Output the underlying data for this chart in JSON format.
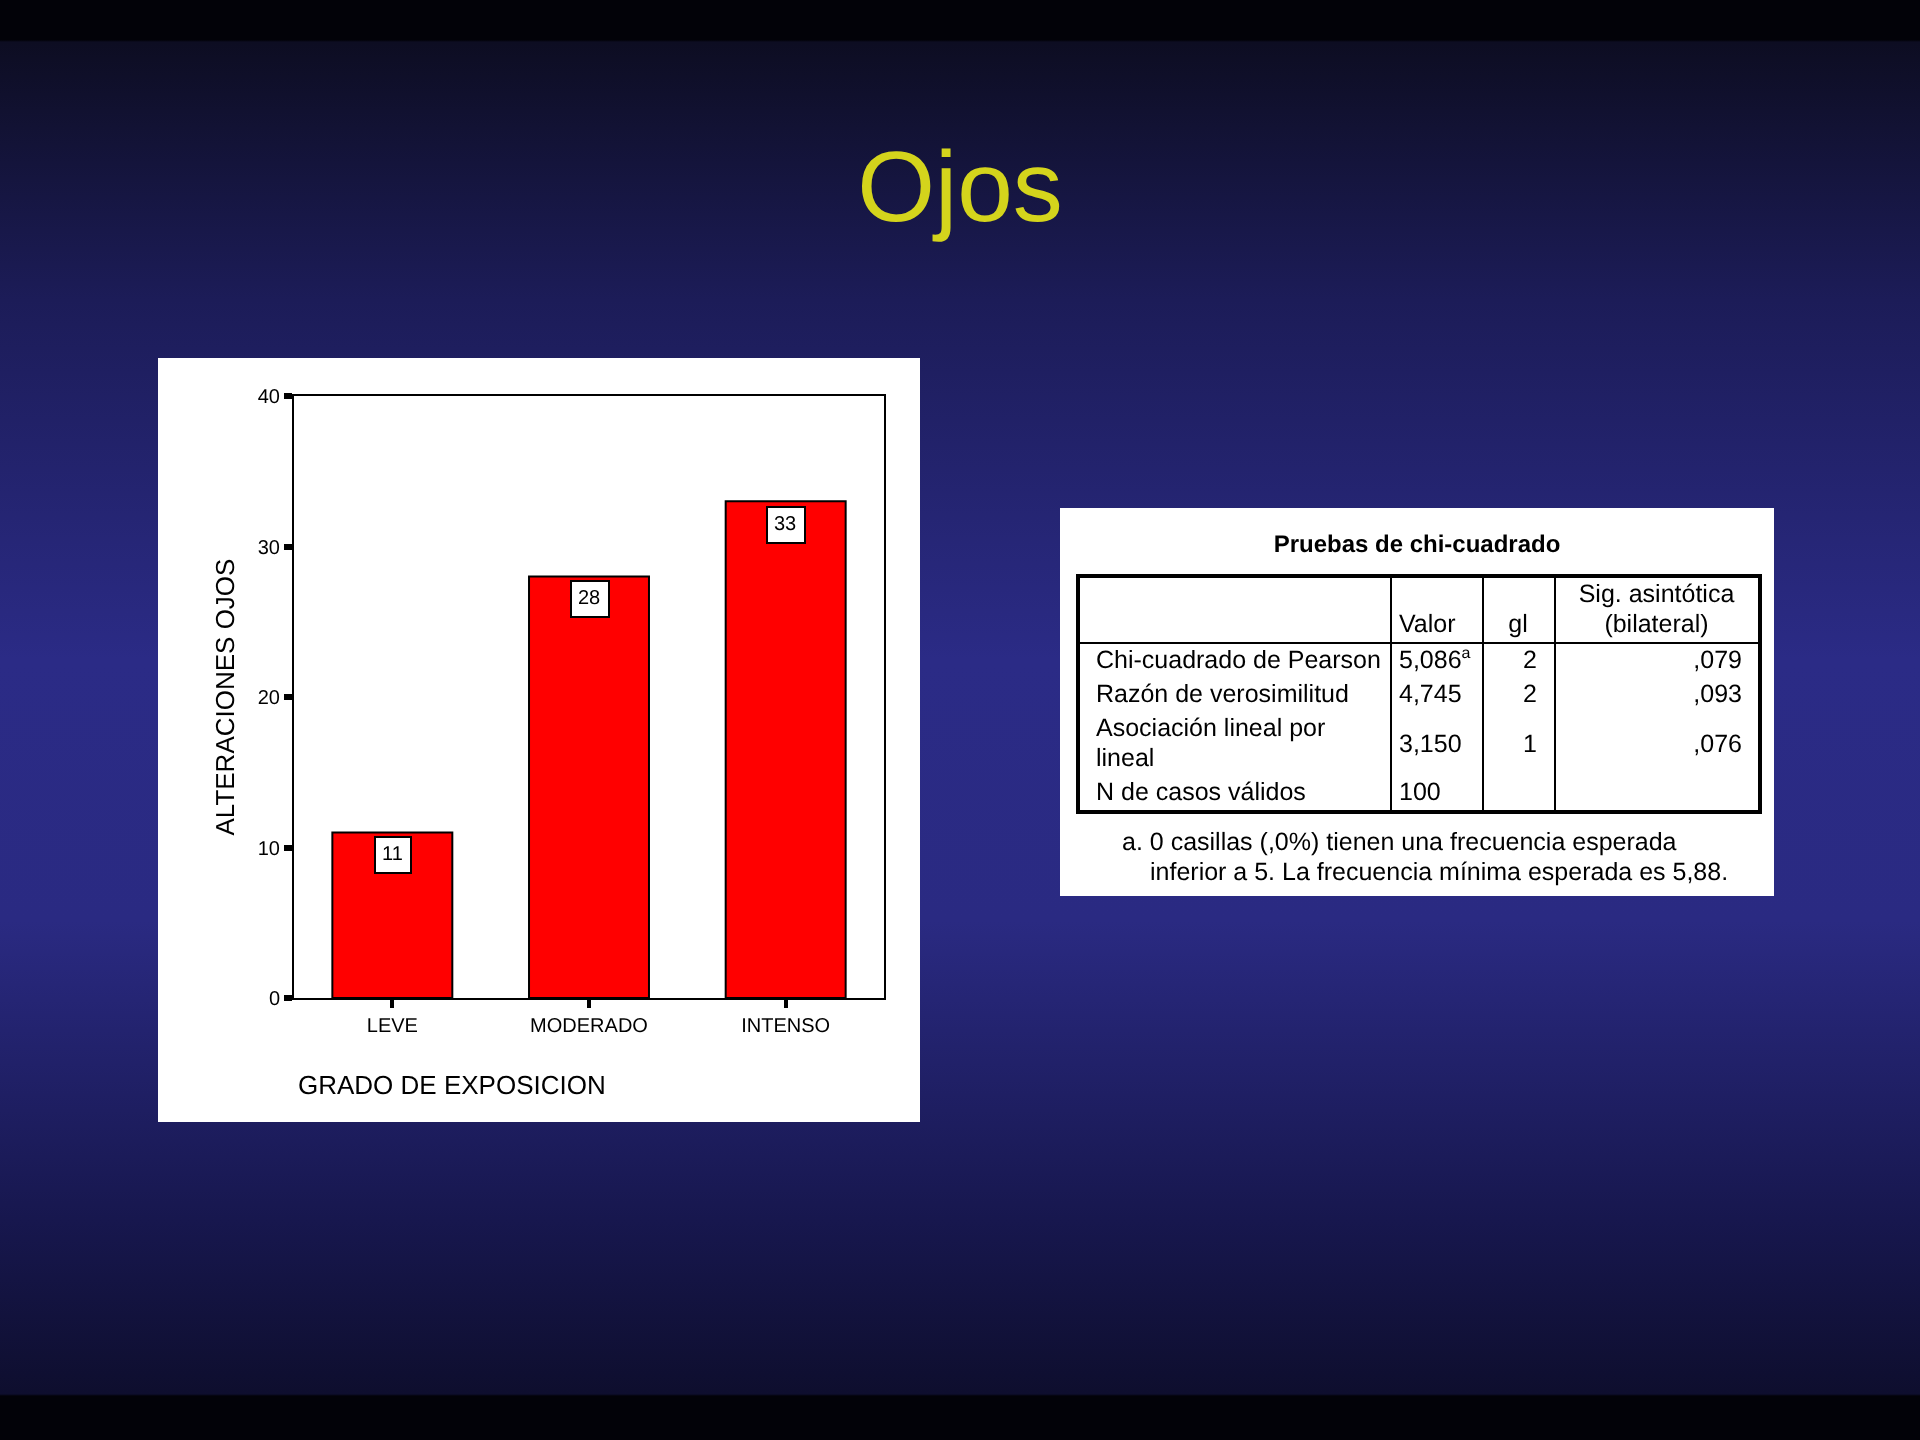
{
  "chart_data": [
    {
      "type": "bar",
      "title": "Ojos",
      "xlabel": "GRADO DE EXPOSICION",
      "ylabel": "ALTERACIONES OJOS",
      "categories": [
        "LEVE",
        "MODERADO",
        "INTENSO"
      ],
      "values": [
        11,
        28,
        33
      ],
      "color": "#ff0000",
      "ylim": [
        0,
        40
      ],
      "yticks": [
        0,
        10,
        20,
        30,
        40
      ],
      "data_labels": true,
      "grid": false
    },
    {
      "type": "other",
      "title": "Pruebas de chi-cuadrado",
      "annotations": [
        "Valor",
        "gl",
        "Sig. asintótica (bilateral)",
        "Chi-cuadrado de Pearson",
        "5,086$^{a}$",
        "2",
        ",079",
        "Razón de verosimilitud",
        "4,745",
        "2",
        ",093",
        "Asociación lineal por lineal",
        "3,150",
        "1",
        ",076",
        "N de casos válidos",
        "100",
        "a. 0 casillas (,0%) tienen una frecuencia esperada inferior a 5. La frecuencia mínima esperada es 5,88."
      ]
    }
  ]
}
